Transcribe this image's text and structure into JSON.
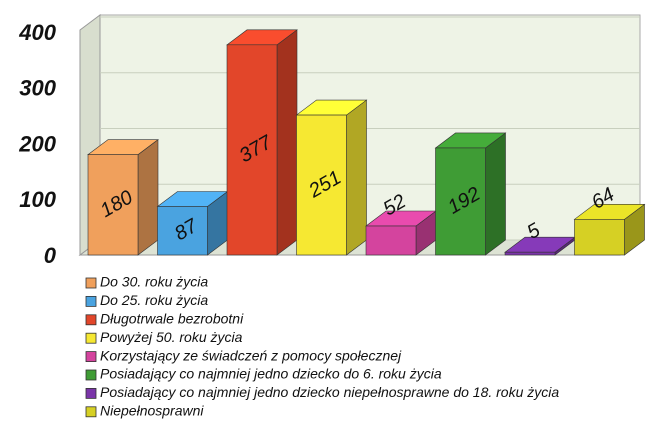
{
  "chart_data": {
    "type": "bar",
    "categories": [
      "Do 30. roku życia",
      "Do 25. roku życia",
      "Długotrwale bezrobotni",
      "Powyżej 50. roku życia",
      "Korzystający ze świadczeń z pomocy społecznej",
      "Posiadający co najmniej jedno dziecko do 6. roku życia",
      "Posiadający co najmniej jedno dziecko niepełnosprawne do 18. roku życia",
      "Niepełnosprawni"
    ],
    "values": [
      180,
      87,
      377,
      251,
      52,
      192,
      5,
      64
    ],
    "colors": [
      "#f0a05c",
      "#4aa3e0",
      "#e2462a",
      "#f6e832",
      "#d4449e",
      "#3f9c35",
      "#7a35a8",
      "#d6d024"
    ],
    "ylim": [
      0,
      400
    ],
    "yticks": [
      0,
      100,
      200,
      300,
      400
    ],
    "grid": true,
    "legend": "bottom"
  }
}
